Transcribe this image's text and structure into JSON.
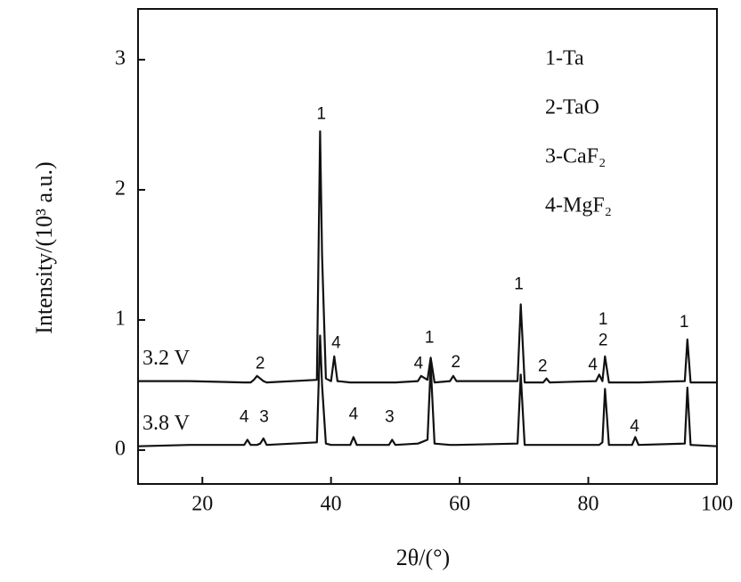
{
  "chart_data": {
    "type": "line",
    "xlabel": "2θ/(°)",
    "ylabel": "Intensity/(10³ a.u.)",
    "key": [
      "1-Ta",
      "2-TaO",
      "3-CaF₂",
      "4-MgF₂"
    ],
    "x": [
      10,
      18,
      26.5,
      27,
      27.5,
      28,
      28.5,
      29,
      29.5,
      30,
      37.8,
      38.3,
      38.6,
      39.2,
      40,
      40.5,
      41,
      43,
      43.5,
      44,
      49,
      49.5,
      50,
      53.5,
      54,
      55,
      55.5,
      56.1,
      58.5,
      59,
      59.5,
      69,
      69.5,
      70.1,
      73,
      73.5,
      74,
      81.2,
      81.7,
      82.2,
      82.6,
      83.2,
      86.8,
      87.3,
      87.8,
      95,
      95.4,
      95.9,
      100
    ],
    "series": [
      {
        "name": "3.2 V",
        "color": "#111111",
        "values": [
          0.53,
          0.53,
          0.52,
          0.52,
          0.52,
          0.54,
          0.57,
          0.55,
          0.53,
          0.52,
          0.54,
          2.45,
          1.5,
          0.55,
          0.53,
          0.72,
          0.53,
          0.52,
          0.52,
          0.52,
          0.52,
          0.52,
          0.52,
          0.53,
          0.57,
          0.54,
          0.71,
          0.52,
          0.53,
          0.57,
          0.53,
          0.53,
          1.12,
          0.52,
          0.52,
          0.55,
          0.52,
          0.53,
          0.58,
          0.53,
          0.72,
          0.52,
          0.52,
          0.52,
          0.52,
          0.53,
          0.85,
          0.52,
          0.52
        ]
      },
      {
        "name": "3.8 V",
        "color": "#111111",
        "values": [
          0.03,
          0.04,
          0.04,
          0.08,
          0.04,
          0.04,
          0.04,
          0.05,
          0.09,
          0.04,
          0.06,
          0.88,
          0.5,
          0.05,
          0.04,
          0.04,
          0.04,
          0.04,
          0.1,
          0.04,
          0.04,
          0.08,
          0.04,
          0.05,
          0.06,
          0.08,
          0.65,
          0.05,
          0.04,
          0.04,
          0.04,
          0.05,
          0.58,
          0.04,
          0.04,
          0.04,
          0.04,
          0.04,
          0.04,
          0.06,
          0.47,
          0.04,
          0.04,
          0.1,
          0.04,
          0.05,
          0.48,
          0.04,
          0.03
        ]
      }
    ],
    "annotations": [
      {
        "text": "1",
        "x": 38.5,
        "y": 2.58
      },
      {
        "text": "4",
        "x": 40.8,
        "y": 0.82
      },
      {
        "text": "2",
        "x": 29.0,
        "y": 0.66
      },
      {
        "text": "4",
        "x": 53.6,
        "y": 0.66
      },
      {
        "text": "1",
        "x": 55.3,
        "y": 0.86
      },
      {
        "text": "2",
        "x": 59.4,
        "y": 0.67
      },
      {
        "text": "1",
        "x": 69.2,
        "y": 1.27
      },
      {
        "text": "2",
        "x": 72.9,
        "y": 0.64
      },
      {
        "text": "4",
        "x": 80.7,
        "y": 0.65
      },
      {
        "text": "1",
        "x": 82.3,
        "y": 1.0
      },
      {
        "text": "2",
        "x": 82.3,
        "y": 0.84
      },
      {
        "text": "1",
        "x": 94.9,
        "y": 0.98
      },
      {
        "text": "4",
        "x": 26.5,
        "y": 0.25
      },
      {
        "text": "3",
        "x": 29.6,
        "y": 0.25
      },
      {
        "text": "4",
        "x": 43.5,
        "y": 0.27
      },
      {
        "text": "3",
        "x": 49.1,
        "y": 0.25
      },
      {
        "text": "4",
        "x": 87.2,
        "y": 0.18
      }
    ],
    "xlim": [
      10,
      100
    ],
    "xticks": [
      20,
      40,
      60,
      80,
      100
    ],
    "ylim": [
      -0.26,
      3.39
    ],
    "yticks": [
      0,
      1,
      2,
      3
    ],
    "grid": false
  }
}
